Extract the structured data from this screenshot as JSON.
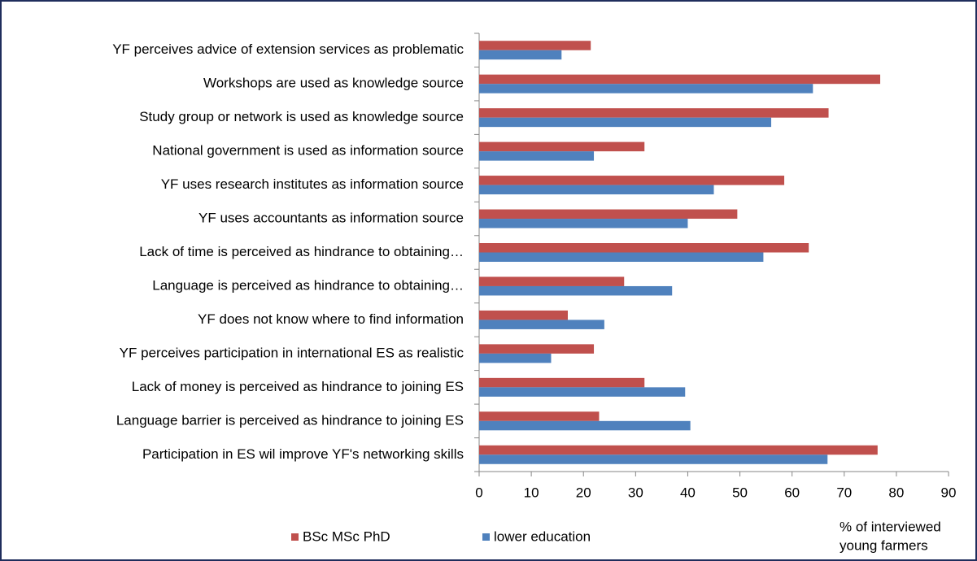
{
  "chart_data": {
    "type": "hbar",
    "categories": [
      "YF perceives advice of extension services as problematic",
      "Workshops are used as knowledge source",
      "Study group or network is used as knowledge source",
      "National government is used as information source",
      "YF uses research institutes as information source",
      "YF uses accountants as information source",
      "Lack of time is perceived as hindrance to obtaining…",
      "Language is perceived as hindrance to obtaining…",
      "YF does not know where to find information",
      "YF perceives participation in international ES as realistic",
      "Lack of money is perceived as hindrance to joining ES",
      "Language barrier is perceived as hindrance to joining ES",
      "Participation in ES wil improve YF's networking skills"
    ],
    "series": [
      {
        "name": "BSc MSc PhD",
        "color": "#c0504d",
        "values": [
          21.4,
          76.9,
          67,
          31.7,
          58.5,
          49.5,
          63.2,
          27.8,
          17,
          22,
          31.7,
          23,
          76.4
        ]
      },
      {
        "name": "lower education",
        "color": "#4f81bd",
        "values": [
          15.8,
          64,
          56,
          22,
          45,
          40,
          54.5,
          37,
          24,
          13.8,
          39.5,
          40.5,
          66.8
        ]
      }
    ],
    "x_label": [
      "% of interviewed",
      "young farmers"
    ],
    "xlim": [
      0,
      90
    ],
    "xticks": [
      0,
      10,
      20,
      30,
      40,
      50,
      60,
      70,
      80,
      90
    ],
    "legend": "bottom"
  }
}
